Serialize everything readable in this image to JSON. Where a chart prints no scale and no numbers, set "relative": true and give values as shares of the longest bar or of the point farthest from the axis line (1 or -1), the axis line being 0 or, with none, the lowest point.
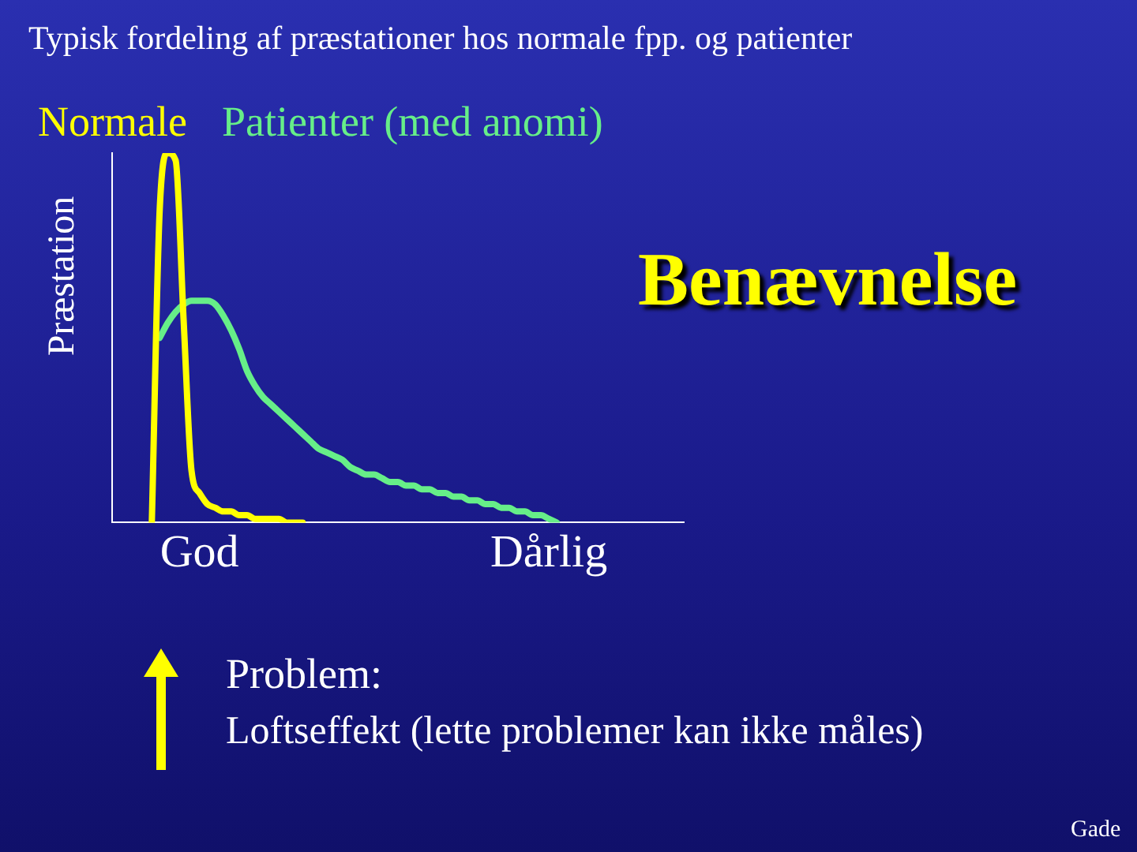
{
  "chart_data": {
    "type": "line",
    "title": "Typisk fordeling af præstationer hos normale fpp. og patienter",
    "ylabel": "Præstation",
    "relative": true,
    "legend": "top left",
    "grid": false,
    "tick_labels": "x",
    "marker": "none",
    "line_style": "solid",
    "categories": [
      null,
      null,
      null,
      null,
      null,
      null,
      null,
      null,
      null,
      null,
      null,
      "God",
      null,
      null,
      null,
      null,
      null,
      null,
      null,
      null,
      null,
      null,
      null,
      null,
      null,
      null,
      null,
      null,
      null,
      null,
      null,
      null,
      null,
      null,
      null,
      null,
      null,
      null,
      null,
      null,
      null,
      null,
      null,
      null,
      null,
      null,
      null,
      null,
      null,
      null,
      null,
      null,
      null,
      null,
      null,
      "Dårlig",
      null,
      null,
      null,
      null,
      null,
      null,
      null,
      null,
      null,
      null,
      null,
      null,
      null,
      null,
      null,
      null,
      null
    ],
    "series": [
      {
        "name": "Normale",
        "color": "#ffff00",
        "values": [
          null,
          null,
          null,
          null,
          null,
          0,
          0.85,
          1,
          0.98,
          0.55,
          0.14,
          0.08,
          0.05,
          0.04,
          0.03,
          0.03,
          0.02,
          0.02,
          0.01,
          0.01,
          0.01,
          0.01,
          0,
          0,
          0,
          null,
          null,
          null,
          null,
          null,
          null,
          null,
          null,
          null,
          null,
          null,
          null,
          null,
          null,
          null,
          null,
          null,
          null,
          null,
          null,
          null,
          null,
          null,
          null,
          null,
          null,
          null,
          null,
          null,
          null,
          null,
          null,
          null,
          null,
          null,
          null,
          null,
          null,
          null,
          null,
          null,
          null,
          null,
          null,
          null,
          null,
          null,
          null
        ]
      },
      {
        "name": "Patienter (med anomi)",
        "color": "#66ee88",
        "values": [
          null,
          null,
          null,
          null,
          null,
          null,
          0.5,
          0.54,
          0.57,
          0.59,
          0.6,
          0.6,
          0.6,
          0.59,
          0.56,
          0.52,
          0.47,
          0.41,
          0.37,
          0.34,
          0.32,
          0.3,
          0.28,
          0.26,
          0.24,
          0.22,
          0.2,
          0.19,
          0.18,
          0.17,
          0.15,
          0.14,
          0.13,
          0.13,
          0.12,
          0.11,
          0.11,
          0.1,
          0.1,
          0.09,
          0.09,
          0.08,
          0.08,
          0.07,
          0.07,
          0.06,
          0.06,
          0.05,
          0.05,
          0.04,
          0.04,
          0.03,
          0.03,
          0.02,
          0.02,
          0.01,
          0,
          null,
          null,
          null,
          null,
          null,
          null,
          null,
          null,
          null,
          null,
          null,
          null,
          null,
          null,
          null,
          null
        ]
      }
    ],
    "annotations": [
      "Benævnelse",
      "Problem:",
      "Loftseffekt (lette problemer kan ikke måles)",
      "Gade"
    ]
  }
}
